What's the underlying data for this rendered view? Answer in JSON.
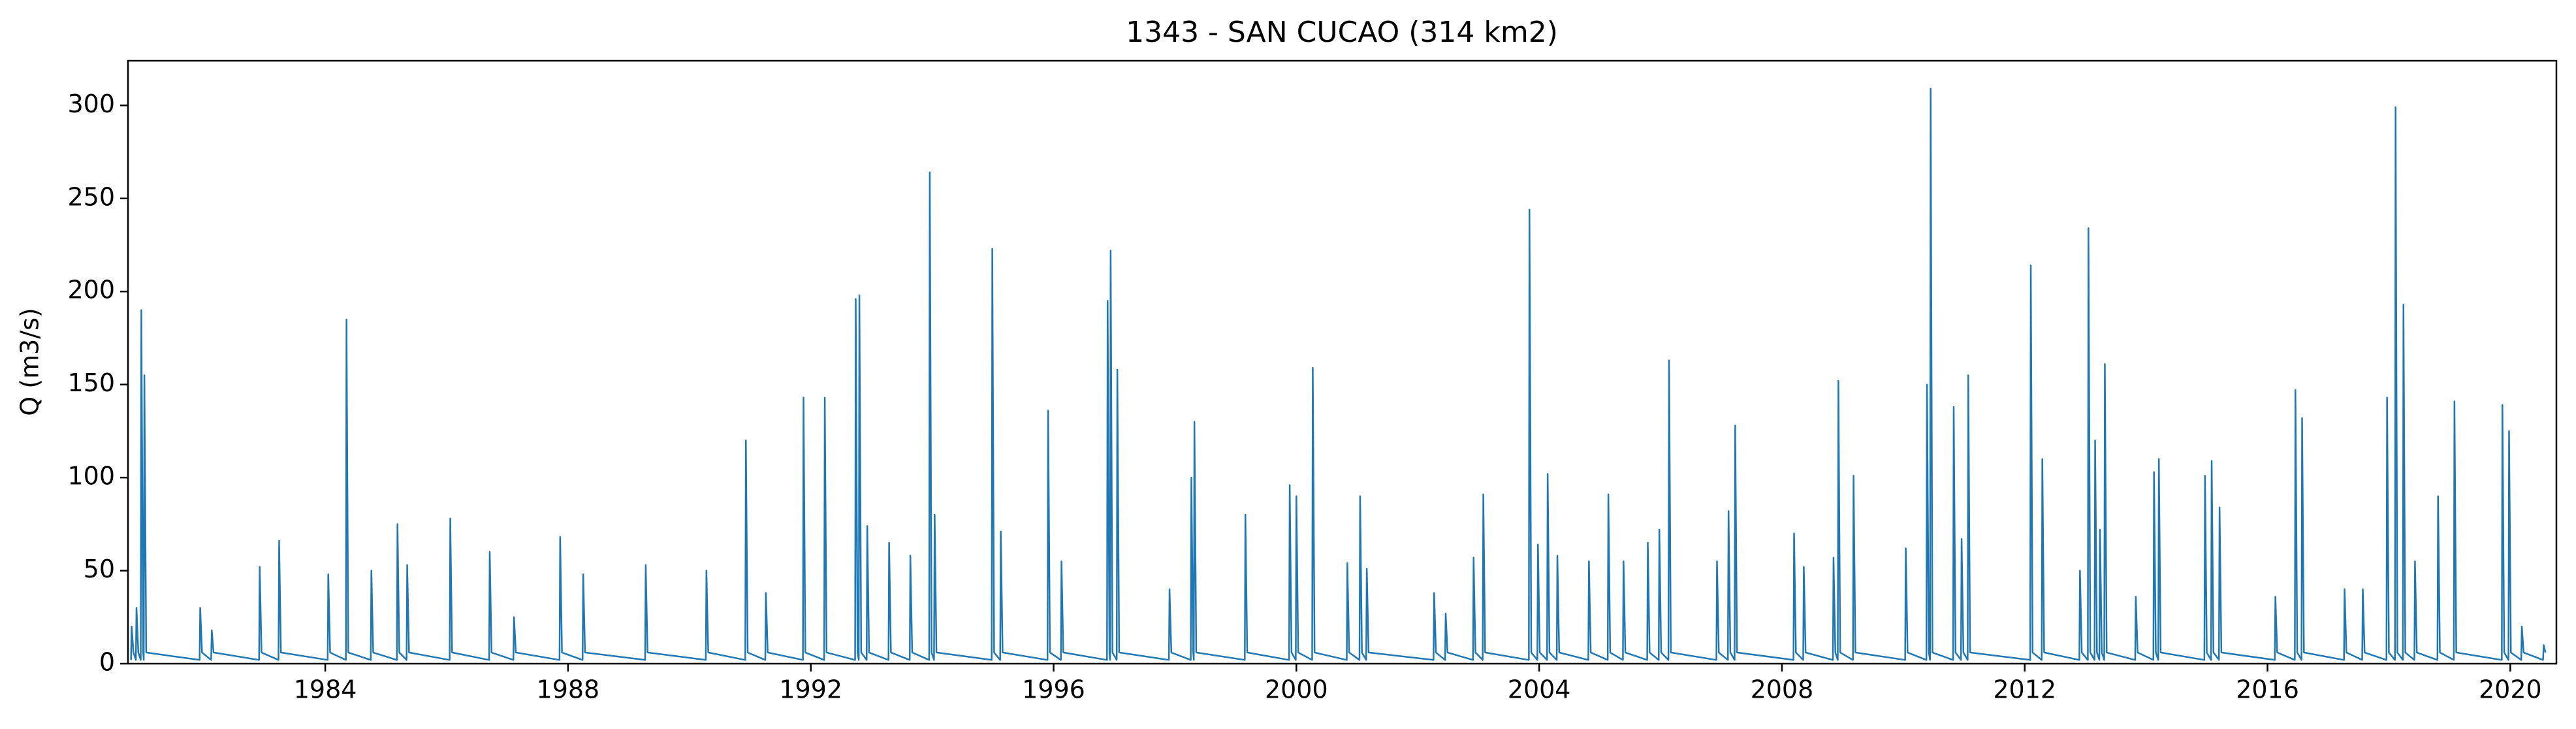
{
  "chart_data": {
    "type": "line",
    "title": "1343 - SAN CUCAO (314 km2)",
    "y_label": "Q (m3/s)",
    "color": "#1f77b4",
    "xlim": [
      1980.75,
      2020.76
    ],
    "xticks": [
      1984,
      1988,
      1992,
      1996,
      2000,
      2004,
      2008,
      2012,
      2016,
      2020
    ],
    "ylim": [
      0,
      324
    ],
    "yticks": [
      0,
      50,
      100,
      150,
      200,
      250,
      300
    ],
    "x": [
      1980.8,
      1980.81,
      1980.84,
      1980.88,
      1980.89,
      1980.92,
      1980.96,
      1980.97,
      1981.0,
      1981.01,
      1981.02,
      1981.05,
      1981.93,
      1981.94,
      1981.97,
      1982.12,
      1982.13,
      1982.16,
      1982.91,
      1982.92,
      1982.95,
      1983.23,
      1983.24,
      1983.27,
      1984.04,
      1984.05,
      1984.08,
      1984.34,
      1984.35,
      1984.38,
      1984.75,
      1984.76,
      1984.79,
      1985.18,
      1985.19,
      1985.22,
      1985.34,
      1985.35,
      1985.38,
      1986.05,
      1986.06,
      1986.09,
      1986.7,
      1986.71,
      1986.74,
      1987.1,
      1987.11,
      1987.14,
      1987.86,
      1987.87,
      1987.9,
      1988.24,
      1988.25,
      1988.28,
      1989.27,
      1989.28,
      1989.31,
      1990.27,
      1990.28,
      1990.31,
      1990.92,
      1990.93,
      1990.96,
      1991.25,
      1991.26,
      1991.29,
      1991.87,
      1991.88,
      1991.91,
      1992.22,
      1992.23,
      1992.26,
      1992.73,
      1992.74,
      1992.77,
      1992.79,
      1992.8,
      1992.83,
      1992.92,
      1992.93,
      1992.96,
      1993.28,
      1993.29,
      1993.32,
      1993.63,
      1993.64,
      1993.67,
      1993.95,
      1993.96,
      1993.99,
      1994.03,
      1994.04,
      1994.07,
      1994.98,
      1994.99,
      1995.02,
      1995.12,
      1995.13,
      1995.16,
      1995.9,
      1995.91,
      1995.94,
      1996.12,
      1996.13,
      1996.16,
      1996.88,
      1996.89,
      1996.92,
      1996.93,
      1996.94,
      1996.97,
      1997.04,
      1997.05,
      1997.08,
      1997.9,
      1997.91,
      1997.94,
      1998.26,
      1998.27,
      1998.3,
      1998.31,
      1998.32,
      1998.35,
      1999.15,
      1999.16,
      1999.19,
      1999.88,
      1999.89,
      1999.92,
      1999.99,
      2000.0,
      2000.03,
      2000.26,
      2000.27,
      2000.3,
      2000.83,
      2000.84,
      2000.87,
      2001.04,
      2001.05,
      2001.08,
      2001.15,
      2001.16,
      2001.19,
      2002.26,
      2002.27,
      2002.3,
      2002.45,
      2002.46,
      2002.49,
      2002.91,
      2002.92,
      2002.95,
      2003.07,
      2003.08,
      2003.11,
      2003.83,
      2003.84,
      2003.87,
      2003.97,
      2003.98,
      2004.01,
      2004.13,
      2004.14,
      2004.17,
      2004.29,
      2004.3,
      2004.33,
      2004.81,
      2004.82,
      2004.85,
      2005.13,
      2005.14,
      2005.17,
      2005.38,
      2005.39,
      2005.42,
      2005.78,
      2005.79,
      2005.82,
      2005.97,
      2005.98,
      2006.01,
      2006.13,
      2006.14,
      2006.17,
      2006.92,
      2006.93,
      2006.96,
      2007.11,
      2007.12,
      2007.15,
      2007.22,
      2007.23,
      2007.26,
      2008.19,
      2008.2,
      2008.23,
      2008.35,
      2008.36,
      2008.39,
      2008.84,
      2008.85,
      2008.88,
      2008.92,
      2008.93,
      2008.96,
      2009.17,
      2009.18,
      2009.21,
      2010.03,
      2010.04,
      2010.07,
      2010.38,
      2010.39,
      2010.42,
      2010.44,
      2010.45,
      2010.48,
      2010.82,
      2010.83,
      2010.86,
      2010.95,
      2010.96,
      2010.99,
      2011.06,
      2011.07,
      2011.1,
      2012.09,
      2012.1,
      2012.13,
      2012.28,
      2012.29,
      2012.32,
      2012.9,
      2012.91,
      2012.94,
      2013.04,
      2013.05,
      2013.08,
      2013.15,
      2013.16,
      2013.19,
      2013.23,
      2013.24,
      2013.27,
      2013.31,
      2013.32,
      2013.35,
      2013.82,
      2013.83,
      2013.86,
      2014.12,
      2014.13,
      2014.16,
      2014.2,
      2014.21,
      2014.24,
      2014.96,
      2014.97,
      2015.0,
      2015.07,
      2015.08,
      2015.11,
      2015.2,
      2015.21,
      2015.24,
      2016.12,
      2016.13,
      2016.16,
      2016.45,
      2016.46,
      2016.49,
      2016.56,
      2016.57,
      2016.6,
      2017.26,
      2017.27,
      2017.3,
      2017.56,
      2017.57,
      2017.6,
      2017.96,
      2017.97,
      2018.0,
      2018.1,
      2018.11,
      2018.14,
      2018.23,
      2018.24,
      2018.27,
      2018.42,
      2018.43,
      2018.46,
      2018.8,
      2018.81,
      2018.84,
      2019.07,
      2019.08,
      2019.11,
      2019.86,
      2019.87,
      2019.9,
      2019.97,
      2019.98,
      2020.01,
      2020.18,
      2020.19,
      2020.22,
      2020.54,
      2020.55,
      2020.58
    ],
    "values": [
      2,
      20,
      6,
      2,
      30,
      6,
      2,
      190,
      6,
      2,
      155,
      6,
      2,
      30,
      6,
      2,
      18,
      6,
      2,
      52,
      6,
      2,
      66,
      6,
      2,
      48,
      6,
      2,
      185,
      6,
      2,
      50,
      6,
      2,
      75,
      6,
      2,
      53,
      6,
      2,
      78,
      6,
      2,
      60,
      6,
      2,
      25,
      6,
      2,
      68,
      6,
      2,
      48,
      6,
      2,
      53,
      6,
      2,
      50,
      6,
      2,
      120,
      6,
      2,
      38,
      6,
      2,
      143,
      6,
      2,
      143,
      6,
      2,
      196,
      6,
      2,
      198,
      6,
      2,
      74,
      6,
      2,
      65,
      6,
      2,
      58,
      6,
      2,
      264,
      6,
      2,
      80,
      6,
      2,
      223,
      6,
      2,
      71,
      6,
      2,
      136,
      6,
      2,
      55,
      6,
      2,
      195,
      6,
      2,
      222,
      6,
      2,
      158,
      6,
      2,
      40,
      6,
      2,
      100,
      6,
      2,
      130,
      6,
      2,
      80,
      6,
      2,
      96,
      6,
      2,
      90,
      6,
      2,
      159,
      6,
      2,
      54,
      6,
      2,
      90,
      6,
      2,
      51,
      6,
      2,
      38,
      6,
      2,
      27,
      6,
      2,
      57,
      6,
      2,
      91,
      6,
      2,
      244,
      6,
      2,
      64,
      6,
      2,
      102,
      6,
      2,
      58,
      6,
      2,
      55,
      6,
      2,
      91,
      6,
      2,
      55,
      6,
      2,
      65,
      6,
      2,
      72,
      6,
      2,
      163,
      6,
      2,
      55,
      6,
      2,
      82,
      6,
      2,
      128,
      6,
      2,
      70,
      6,
      2,
      52,
      6,
      2,
      57,
      6,
      2,
      152,
      6,
      2,
      101,
      6,
      2,
      62,
      6,
      2,
      150,
      6,
      2,
      309,
      6,
      2,
      138,
      6,
      2,
      67,
      6,
      2,
      155,
      6,
      2,
      214,
      6,
      2,
      110,
      6,
      2,
      50,
      6,
      2,
      234,
      6,
      2,
      120,
      6,
      2,
      72,
      6,
      2,
      161,
      6,
      2,
      36,
      6,
      2,
      103,
      6,
      2,
      110,
      6,
      2,
      101,
      6,
      2,
      109,
      6,
      2,
      84,
      6,
      2,
      36,
      6,
      2,
      147,
      6,
      2,
      132,
      6,
      2,
      40,
      6,
      2,
      40,
      6,
      2,
      143,
      6,
      2,
      299,
      6,
      2,
      193,
      6,
      2,
      55,
      6,
      2,
      90,
      6,
      2,
      141,
      6,
      2,
      139,
      6,
      2,
      125,
      6,
      2,
      20,
      6,
      2,
      10,
      6
    ]
  }
}
